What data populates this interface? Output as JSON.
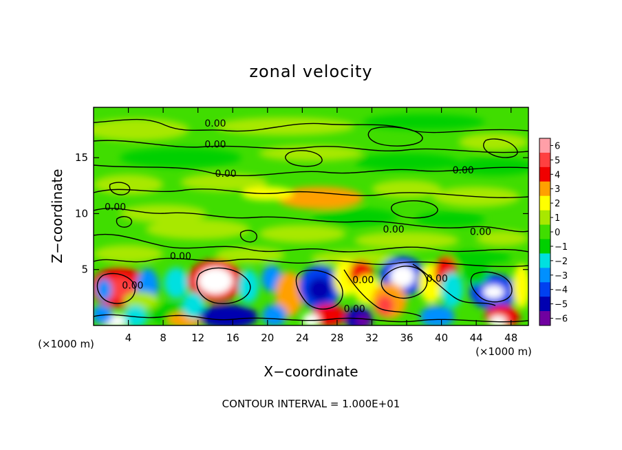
{
  "chart_data": {
    "type": "heatmap",
    "title": "zonal velocity",
    "xlabel": "X−coordinate",
    "ylabel": "Z−coordinate",
    "x_unit_label": "(×1000 m)",
    "x_unit_label_right": "(×1000 m)",
    "xlim": [
      0,
      50
    ],
    "ylim": [
      0,
      19.5
    ],
    "x_ticks": [
      4,
      8,
      12,
      16,
      20,
      24,
      28,
      32,
      36,
      40,
      44,
      48
    ],
    "x_tick_labels": [
      "4",
      "8",
      "12",
      "16",
      "20",
      "24",
      "28",
      "32",
      "36",
      "40",
      "44",
      "48"
    ],
    "y_ticks": [
      5,
      10,
      15
    ],
    "y_tick_labels": [
      "5",
      "10",
      "15"
    ],
    "colorbar": {
      "values": [
        6,
        5,
        4,
        3,
        2,
        1,
        0,
        -1,
        -2,
        -3,
        -4,
        -5,
        -6
      ],
      "labels": [
        "6",
        "5",
        "4",
        "3",
        "2",
        "1",
        "0",
        "−1",
        "−2",
        "−3",
        "−4",
        "−5",
        "−6"
      ],
      "colors": [
        "#ff9fa8",
        "#ff4040",
        "#f00000",
        "#ffa000",
        "#ffff00",
        "#a8e800",
        "#40dd00",
        "#00d000",
        "#00e0e0",
        "#0090ff",
        "#0040f0",
        "#0000b0",
        "#7000a0"
      ]
    },
    "contour_labels": [
      {
        "text": "0.00",
        "x": 14.0,
        "z": 18.1
      },
      {
        "text": "0.00",
        "x": 14.0,
        "z": 16.2
      },
      {
        "text": "0.00",
        "x": 15.2,
        "z": 13.6
      },
      {
        "text": "0.00",
        "x": 42.5,
        "z": 13.9
      },
      {
        "text": "0.00",
        "x": 2.5,
        "z": 10.6
      },
      {
        "text": "0.00",
        "x": 34.5,
        "z": 8.6
      },
      {
        "text": "0.00",
        "x": 44.5,
        "z": 8.4
      },
      {
        "text": "0.00",
        "x": 10.0,
        "z": 6.2
      },
      {
        "text": "0.00",
        "x": 4.5,
        "z": 3.6
      },
      {
        "text": "0.00",
        "x": 31.0,
        "z": 4.1
      },
      {
        "text": "0.00",
        "x": 30.0,
        "z": 1.5
      },
      {
        "text": "0.00",
        "x": 39.5,
        "z": 4.2
      }
    ],
    "notable_features": [
      {
        "label": "positive maximum",
        "x": 14.0,
        "z": 4.0,
        "value": 6
      },
      {
        "label": "positive maximum",
        "x": 3.0,
        "z": 3.5,
        "value": 5
      },
      {
        "label": "negative minimum",
        "x": 26.0,
        "z": 3.3,
        "value": -5
      },
      {
        "label": "negative minimum",
        "x": 46.0,
        "z": 3.0,
        "value": -5
      },
      {
        "label": "positive maximum",
        "x": 35.5,
        "z": 4.5,
        "value": 6
      },
      {
        "label": "negative minimum",
        "x": 30.5,
        "z": 0.5,
        "value": -6
      },
      {
        "label": "positive maximum",
        "x": 2.5,
        "z": 0.4,
        "value": 6
      },
      {
        "label": "positive band",
        "x": 26.0,
        "z": 11.3,
        "value": 3
      }
    ],
    "footer": "CONTOUR INTERVAL = 1.000E+01"
  }
}
